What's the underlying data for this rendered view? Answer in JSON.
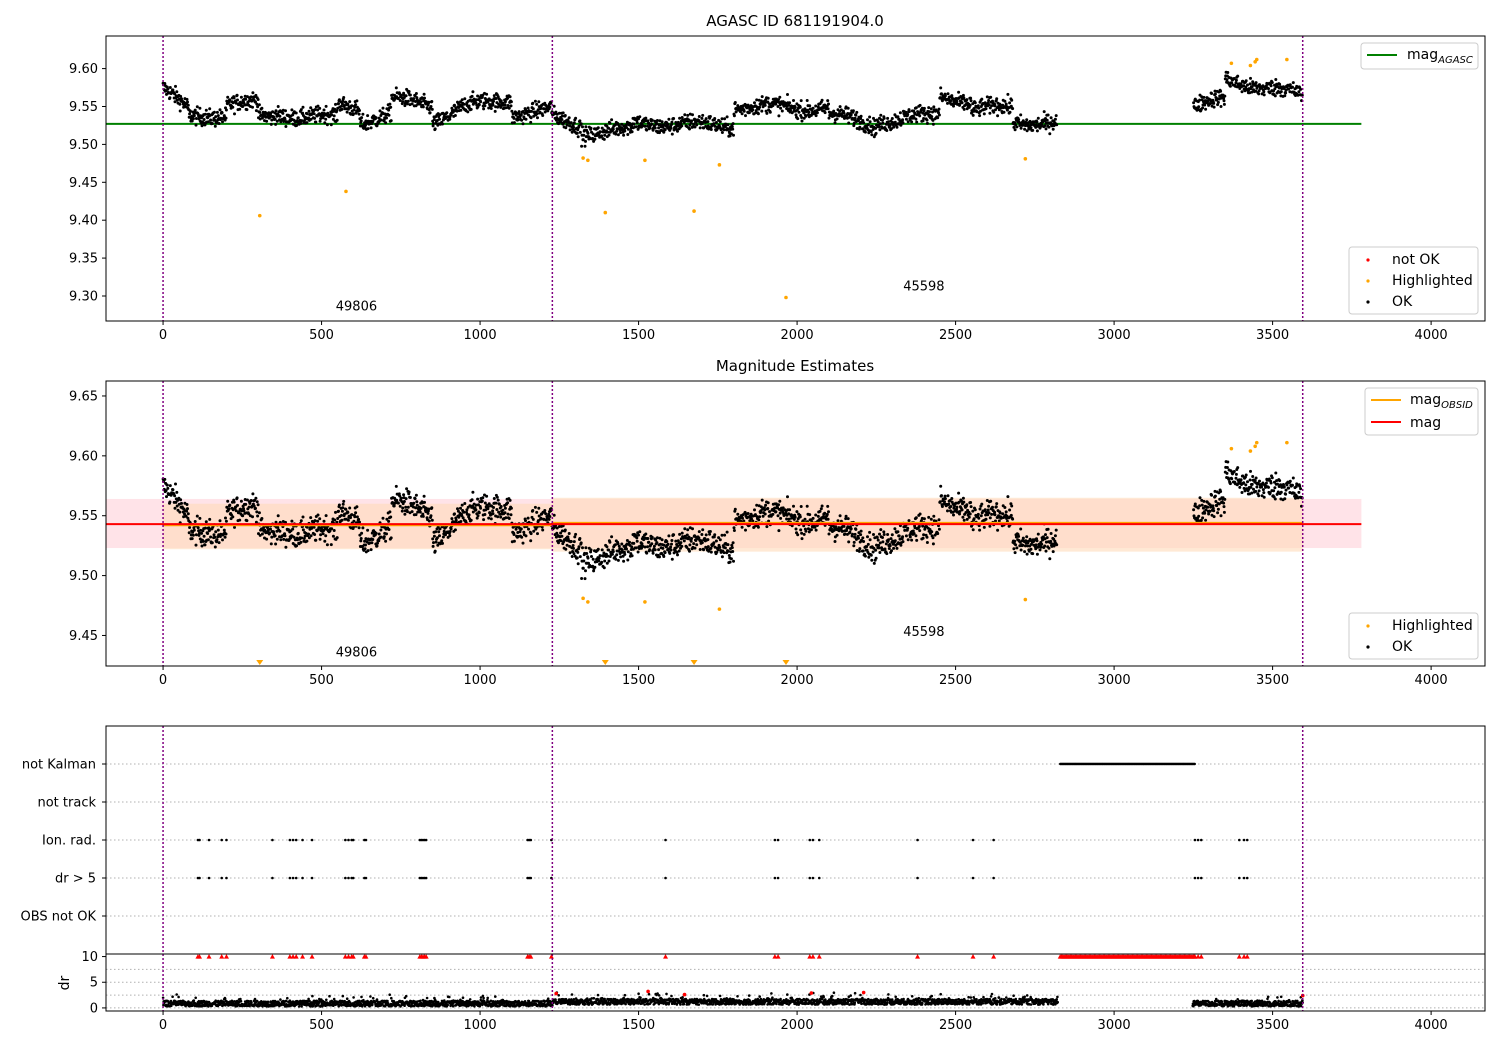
{
  "colors": {
    "ok": "#000000",
    "highlighted": "#ffa500",
    "not_ok": "#ff0000",
    "agasc_line": "#008000",
    "mag_line": "#ff0000",
    "mag_obsid_line": "#ffa500",
    "obs_boundary": "#800080",
    "mag_band": "#ffc0cb",
    "mag_obsid_band": "#ffdab9"
  },
  "chart_data": [
    {
      "type": "scatter",
      "title": "AGASC ID 681191904.0",
      "xlabel": "",
      "ylabel": "",
      "xlim": [
        -180,
        4170
      ],
      "ylim": [
        9.267,
        9.643
      ],
      "xticks": [
        "0",
        "500",
        "1000",
        "1500",
        "2000",
        "2500",
        "3000",
        "3500",
        "4000"
      ],
      "yticks": [
        "9.30",
        "9.35",
        "9.40",
        "9.45",
        "9.50",
        "9.55",
        "9.60"
      ],
      "observation_boundaries": [
        0,
        1228,
        3595
      ],
      "observation_labels": [
        {
          "text": "49806",
          "x": 610,
          "y": 9.281
        },
        {
          "text": "45598",
          "x": 2400,
          "y": 9.307
        }
      ],
      "reference_lines": [
        {
          "name": "mag_AGASC",
          "y": 9.527,
          "x_range": [
            -180,
            3780
          ]
        }
      ],
      "legend_top": {
        "placement": "top-right",
        "entries": [
          {
            "label": "mag",
            "sub": "AGASC"
          }
        ]
      },
      "legend_bottom": {
        "placement": "bottom-right",
        "entries": [
          "not OK",
          "Highlighted",
          "OK"
        ]
      },
      "highlighted_points": [
        [
          305,
          9.406
        ],
        [
          577,
          9.438
        ],
        [
          1325,
          9.482
        ],
        [
          1340,
          9.479
        ],
        [
          1395,
          9.41
        ],
        [
          1520,
          9.479
        ],
        [
          1675,
          9.412
        ],
        [
          1755,
          9.473
        ],
        [
          1965,
          9.298
        ],
        [
          2720,
          9.481
        ],
        [
          3370,
          9.607
        ],
        [
          3430,
          9.604
        ],
        [
          3445,
          9.609
        ],
        [
          3450,
          9.612
        ],
        [
          3545,
          9.612
        ]
      ]
    },
    {
      "type": "scatter",
      "title": "Magnitude Estimates",
      "xlabel": "",
      "ylabel": "",
      "xlim": [
        -180,
        4170
      ],
      "ylim": [
        9.4245,
        9.6625
      ],
      "xticks": [
        "0",
        "500",
        "1000",
        "1500",
        "2000",
        "2500",
        "3000",
        "3500",
        "4000"
      ],
      "yticks": [
        "9.45",
        "9.50",
        "9.55",
        "9.60",
        "9.65"
      ],
      "observation_boundaries": [
        0,
        1228,
        3595
      ],
      "observation_labels": [
        {
          "text": "49806",
          "x": 610,
          "y": 9.4325
        },
        {
          "text": "45598",
          "x": 2400,
          "y": 9.4495
        }
      ],
      "mag": {
        "y": 9.543,
        "band": [
          9.523,
          9.564
        ],
        "x_range": [
          -180,
          3780
        ]
      },
      "mag_obsid": [
        {
          "x_range": [
            0,
            1228
          ],
          "y": 9.542,
          "band": [
            9.522,
            9.56
          ]
        },
        {
          "x_range": [
            1228,
            3595
          ],
          "y": 9.544,
          "band": [
            9.52,
            9.565
          ]
        }
      ],
      "legend_top": {
        "placement": "top-right",
        "entries": [
          {
            "label": "mag",
            "sub": "OBSID"
          },
          {
            "label": "mag",
            "sub": ""
          }
        ]
      },
      "legend_bottom": {
        "placement": "bottom-right",
        "entries": [
          "Highlighted",
          "OK"
        ]
      },
      "highlighted_points": [
        [
          1325,
          9.481
        ],
        [
          1340,
          9.478
        ],
        [
          1520,
          9.478
        ],
        [
          1755,
          9.472
        ],
        [
          2720,
          9.48
        ],
        [
          3370,
          9.606
        ],
        [
          3430,
          9.604
        ],
        [
          3445,
          9.608
        ],
        [
          3450,
          9.611
        ],
        [
          3545,
          9.611
        ]
      ],
      "off_scale_markers_x": [
        305,
        1395,
        1675,
        1965
      ]
    },
    {
      "type": "scatter",
      "title": "",
      "xlabel": "",
      "ylabel": "dr",
      "xlim": [
        -180,
        4170
      ],
      "xticks": [
        "0",
        "500",
        "1000",
        "1500",
        "2000",
        "2500",
        "3000",
        "3500",
        "4000"
      ],
      "flag_categories": [
        "not Kalman",
        "not track",
        "Ion. rad.",
        "dr > 5",
        "OBS not OK"
      ],
      "dr_yticks": [
        "0",
        "5",
        "10"
      ],
      "dr_ylim": [
        -0.6,
        10.5
      ],
      "dr_clip": 10,
      "observation_boundaries": [
        0,
        1228,
        3595
      ],
      "not_kalman_range": [
        2830,
        3255
      ],
      "ion_rad_x": [
        110,
        115,
        145,
        185,
        200,
        345,
        400,
        410,
        420,
        440,
        470,
        575,
        585,
        595,
        600,
        635,
        640,
        810,
        815,
        820,
        825,
        830,
        1150,
        1155,
        1160,
        1225,
        1585,
        1930,
        1940,
        2040,
        2050,
        2070,
        2380,
        2555,
        2620,
        3255,
        3265,
        3275,
        3395,
        3410,
        3420
      ],
      "dr_gt5_x": [
        110,
        115,
        145,
        185,
        200,
        345,
        400,
        410,
        420,
        440,
        470,
        575,
        585,
        595,
        600,
        635,
        640,
        810,
        815,
        820,
        825,
        830,
        1150,
        1155,
        1160,
        1225,
        1585,
        1930,
        1940,
        2040,
        2050,
        2070,
        2380,
        2555,
        2620,
        3255,
        3265,
        3275,
        3395,
        3410,
        3420
      ],
      "dr_red_points": [
        [
          1240,
          2.8
        ],
        [
          1530,
          3.2
        ],
        [
          1645,
          2.6
        ],
        [
          2045,
          2.9
        ],
        [
          2210,
          3.0
        ],
        [
          3595,
          2.4
        ]
      ],
      "data_gaps": [
        [
          2830,
          3245
        ]
      ]
    }
  ]
}
